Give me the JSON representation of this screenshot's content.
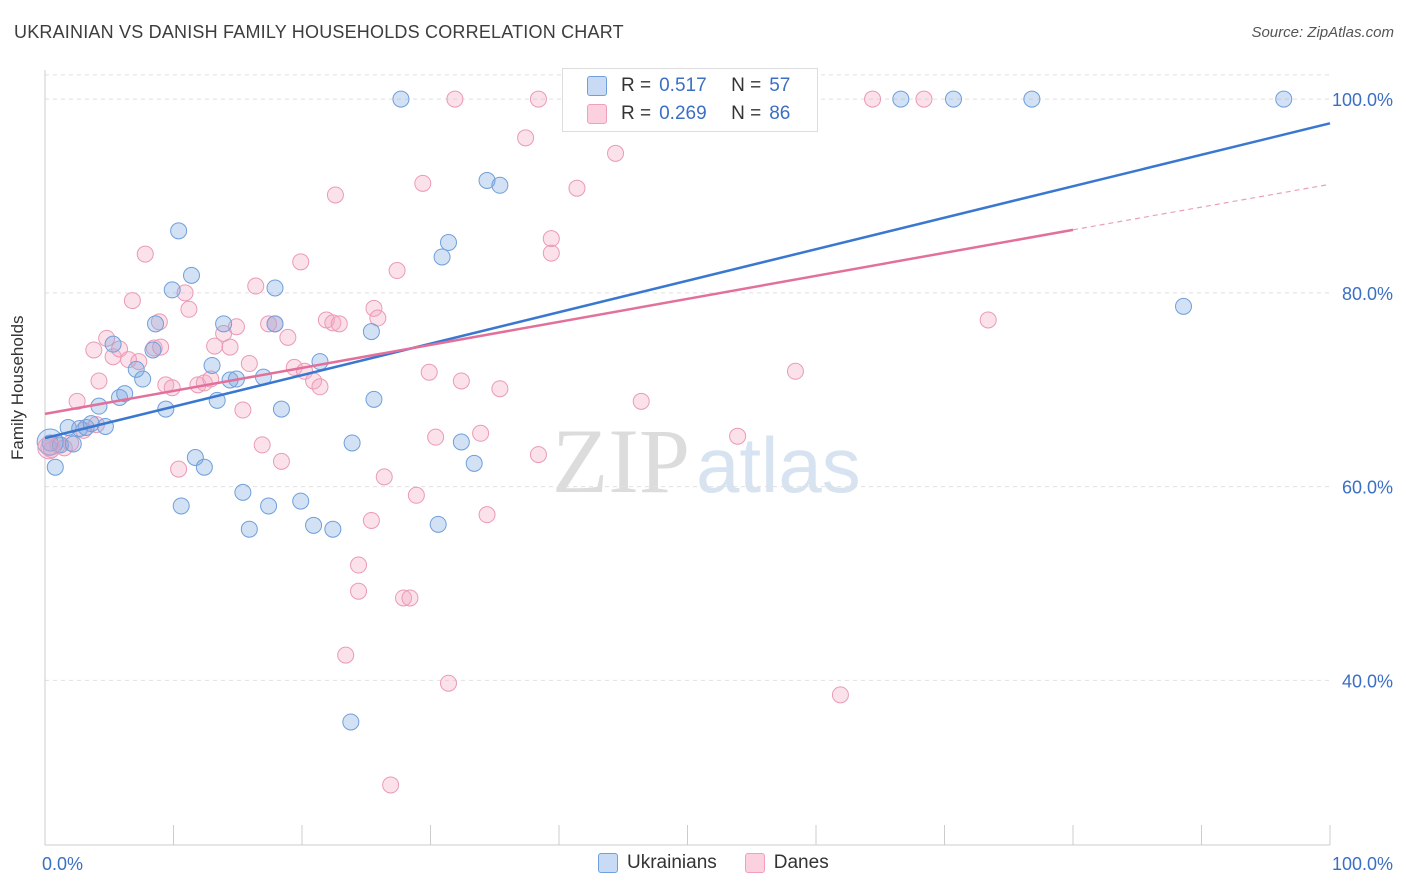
{
  "title": "UKRAINIAN VS DANISH FAMILY HOUSEHOLDS CORRELATION CHART",
  "source": "Source: ZipAtlas.com",
  "watermark": {
    "zip": "ZIP",
    "atlas": "atlas"
  },
  "legend": {
    "rows": [
      {
        "r_label": "R =",
        "r_value": "0.517",
        "n_label": "N =",
        "n_value": "57"
      },
      {
        "r_label": "R =",
        "r_value": "0.269",
        "n_label": "N =",
        "n_value": "86"
      }
    ]
  },
  "bottom_legend": {
    "ukrainians": "Ukrainians",
    "danes": "Danes"
  },
  "chart_data": {
    "type": "scatter",
    "title": "UKRAINIAN VS DANISH FAMILY HOUSEHOLDS CORRELATION CHART",
    "xlabel": "",
    "ylabel": "Family Households",
    "xlim": [
      0,
      100
    ],
    "ylim": [
      23,
      103
    ],
    "x_tick_labels": [
      {
        "value": 0,
        "label": "0.0%"
      },
      {
        "value": 100,
        "label": "100.0%"
      }
    ],
    "y_tick_labels": [
      {
        "value": 100,
        "label": "100.0%"
      },
      {
        "value": 80,
        "label": "80.0%"
      },
      {
        "value": 60,
        "label": "60.0%"
      },
      {
        "value": 40,
        "label": "40.0%"
      }
    ],
    "grid": true,
    "legend_position": "top-center",
    "colors": {
      "ukrainians": "#6f9fdc",
      "danes": "#f0a0bc",
      "ukr_line": "#3a78d0",
      "dan_line": "#e2709a"
    },
    "series": [
      {
        "name": "Ukrainians",
        "trend": {
          "x": [
            0,
            100
          ],
          "y": [
            65.0,
            97.5
          ]
        },
        "points": [
          [
            0.4,
            64.5
          ],
          [
            0.8,
            62.0
          ],
          [
            1.2,
            64.3
          ],
          [
            1.8,
            66.1
          ],
          [
            2.2,
            64.4
          ],
          [
            2.7,
            66.0
          ],
          [
            3.2,
            66.1
          ],
          [
            3.6,
            66.5
          ],
          [
            4.2,
            68.3
          ],
          [
            4.7,
            66.2
          ],
          [
            5.3,
            74.7
          ],
          [
            5.8,
            69.2
          ],
          [
            6.2,
            69.6
          ],
          [
            7.1,
            72.1
          ],
          [
            7.6,
            71.1
          ],
          [
            8.4,
            74.1
          ],
          [
            8.6,
            76.8
          ],
          [
            9.4,
            68.0
          ],
          [
            9.9,
            80.3
          ],
          [
            10.4,
            86.4
          ],
          [
            10.6,
            58.0
          ],
          [
            11.4,
            81.8
          ],
          [
            11.7,
            63.0
          ],
          [
            12.4,
            62.0
          ],
          [
            13.0,
            72.5
          ],
          [
            13.4,
            68.9
          ],
          [
            13.9,
            76.8
          ],
          [
            14.4,
            71.0
          ],
          [
            14.9,
            71.1
          ],
          [
            15.4,
            59.4
          ],
          [
            15.9,
            55.6
          ],
          [
            17.0,
            71.3
          ],
          [
            17.4,
            58.0
          ],
          [
            17.9,
            76.8
          ],
          [
            17.9,
            80.5
          ],
          [
            18.4,
            68.0
          ],
          [
            19.9,
            58.5
          ],
          [
            20.9,
            56.0
          ],
          [
            21.4,
            72.9
          ],
          [
            22.4,
            55.6
          ],
          [
            23.8,
            35.7
          ],
          [
            23.9,
            64.5
          ],
          [
            25.4,
            76.0
          ],
          [
            25.6,
            69.0
          ],
          [
            27.7,
            100.0
          ],
          [
            30.6,
            56.1
          ],
          [
            30.9,
            83.7
          ],
          [
            31.4,
            85.2
          ],
          [
            32.4,
            64.6
          ],
          [
            33.4,
            62.4
          ],
          [
            34.4,
            91.6
          ],
          [
            35.4,
            91.1
          ],
          [
            66.6,
            100.0
          ],
          [
            70.7,
            100.0
          ],
          [
            76.8,
            100.0
          ],
          [
            88.6,
            78.6
          ],
          [
            96.4,
            100.0
          ]
        ]
      },
      {
        "name": "Danes",
        "trend": {
          "x": [
            0,
            80
          ],
          "y": [
            67.5,
            86.5
          ]
        },
        "trend_dashed": {
          "x": [
            80,
            100
          ],
          "y": [
            86.5,
            91.2
          ]
        },
        "points": [
          [
            0.5,
            63.8
          ],
          [
            1.0,
            64.3
          ],
          [
            1.5,
            64.0
          ],
          [
            2.0,
            64.5
          ],
          [
            2.5,
            68.8
          ],
          [
            3.0,
            65.8
          ],
          [
            3.8,
            74.1
          ],
          [
            4.2,
            70.9
          ],
          [
            4.8,
            75.3
          ],
          [
            5.3,
            73.4
          ],
          [
            5.8,
            74.2
          ],
          [
            6.5,
            73.1
          ],
          [
            6.8,
            79.2
          ],
          [
            7.3,
            72.9
          ],
          [
            7.8,
            84.0
          ],
          [
            8.5,
            74.3
          ],
          [
            8.9,
            77.0
          ],
          [
            9.4,
            70.5
          ],
          [
            9.9,
            70.2
          ],
          [
            10.4,
            61.8
          ],
          [
            10.9,
            80.0
          ],
          [
            11.2,
            78.3
          ],
          [
            11.9,
            70.5
          ],
          [
            12.4,
            70.7
          ],
          [
            12.9,
            71.1
          ],
          [
            13.2,
            74.5
          ],
          [
            13.9,
            75.8
          ],
          [
            14.4,
            74.4
          ],
          [
            14.9,
            76.5
          ],
          [
            15.4,
            67.9
          ],
          [
            15.9,
            72.7
          ],
          [
            16.4,
            80.7
          ],
          [
            16.9,
            64.3
          ],
          [
            17.4,
            76.8
          ],
          [
            17.9,
            76.8
          ],
          [
            18.4,
            62.6
          ],
          [
            18.9,
            75.4
          ],
          [
            19.4,
            72.3
          ],
          [
            19.9,
            83.2
          ],
          [
            20.2,
            71.9
          ],
          [
            20.9,
            70.9
          ],
          [
            21.4,
            70.3
          ],
          [
            21.9,
            77.2
          ],
          [
            22.4,
            76.9
          ],
          [
            22.6,
            90.1
          ],
          [
            22.9,
            76.8
          ],
          [
            23.4,
            42.6
          ],
          [
            24.4,
            51.9
          ],
          [
            24.4,
            49.2
          ],
          [
            25.4,
            56.5
          ],
          [
            25.6,
            78.4
          ],
          [
            25.9,
            77.4
          ],
          [
            26.4,
            61.0
          ],
          [
            26.9,
            29.2
          ],
          [
            27.4,
            82.3
          ],
          [
            27.9,
            48.5
          ],
          [
            28.4,
            48.5
          ],
          [
            28.9,
            59.1
          ],
          [
            29.4,
            91.3
          ],
          [
            29.9,
            71.8
          ],
          [
            30.4,
            65.1
          ],
          [
            31.4,
            39.7
          ],
          [
            31.9,
            100.0
          ],
          [
            32.4,
            70.9
          ],
          [
            33.9,
            65.5
          ],
          [
            34.4,
            57.1
          ],
          [
            35.4,
            70.1
          ],
          [
            37.4,
            96.0
          ],
          [
            38.4,
            63.3
          ],
          [
            38.4,
            100.0
          ],
          [
            39.4,
            85.6
          ],
          [
            39.4,
            84.1
          ],
          [
            41.4,
            90.8
          ],
          [
            44.4,
            100.0
          ],
          [
            44.4,
            94.4
          ],
          [
            46.4,
            68.8
          ],
          [
            51.9,
            100.0
          ],
          [
            53.9,
            65.2
          ],
          [
            58.4,
            71.9
          ],
          [
            61.9,
            38.5
          ],
          [
            64.4,
            100.0
          ],
          [
            68.4,
            100.0
          ],
          [
            73.4,
            77.2
          ],
          [
            0.3,
            64.0
          ],
          [
            4.0,
            66.4
          ],
          [
            9.0,
            74.4
          ]
        ]
      }
    ]
  }
}
